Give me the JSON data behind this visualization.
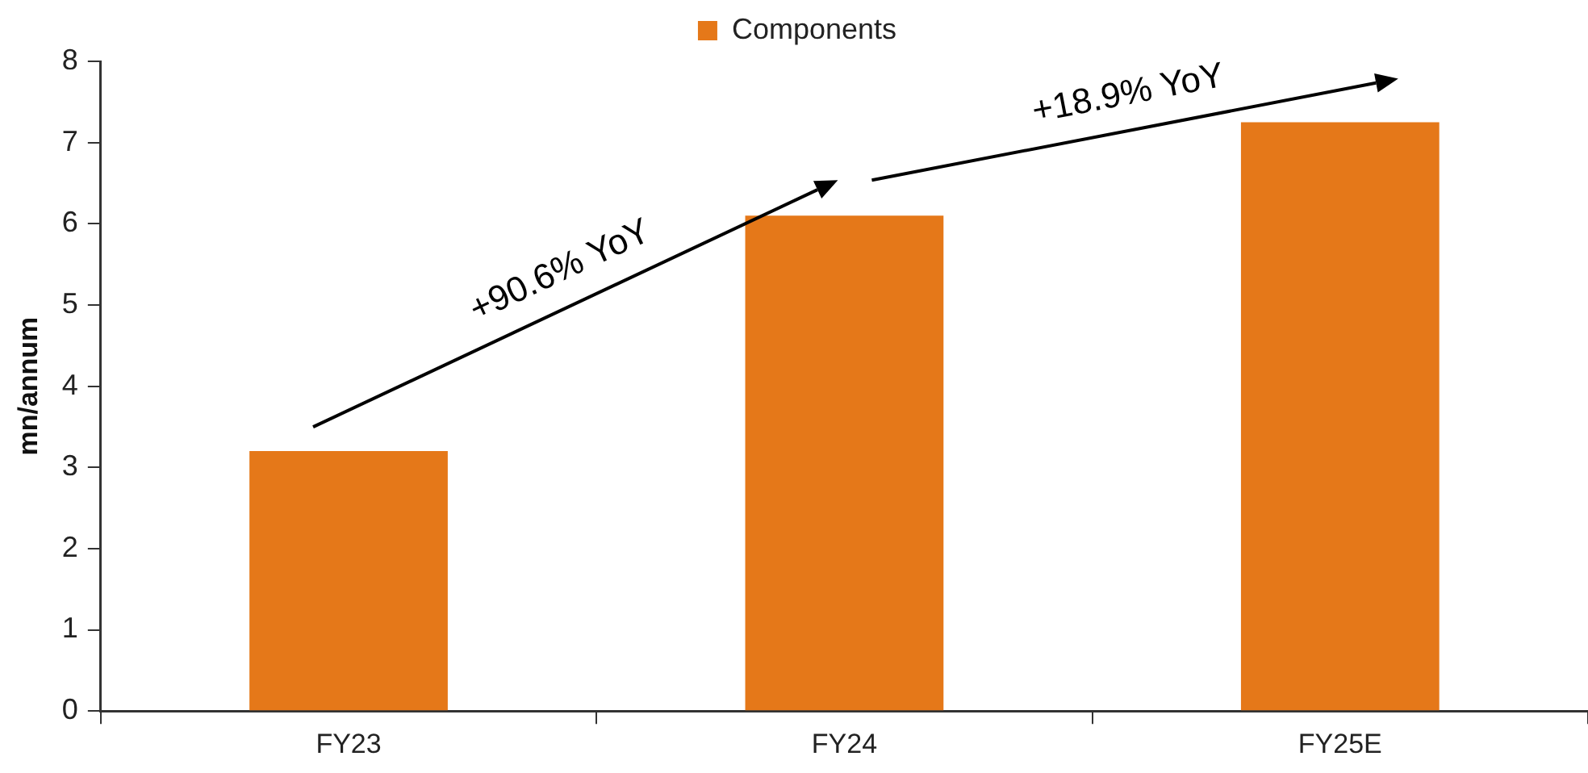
{
  "chart_data": {
    "type": "bar",
    "ylabel": "mn/annum",
    "categories": [
      "FY23",
      "FY24",
      "FY25E"
    ],
    "series": [
      {
        "name": "Components",
        "color": "#e57819",
        "values": [
          3.2,
          6.1,
          7.25
        ]
      }
    ],
    "ylim": [
      0,
      8
    ],
    "yticks": [
      0,
      1,
      2,
      3,
      4,
      5,
      6,
      7,
      8
    ],
    "grid": false,
    "legend": "top",
    "annotations": [
      "+90.6% YoY",
      "+18.9% YoY"
    ]
  }
}
